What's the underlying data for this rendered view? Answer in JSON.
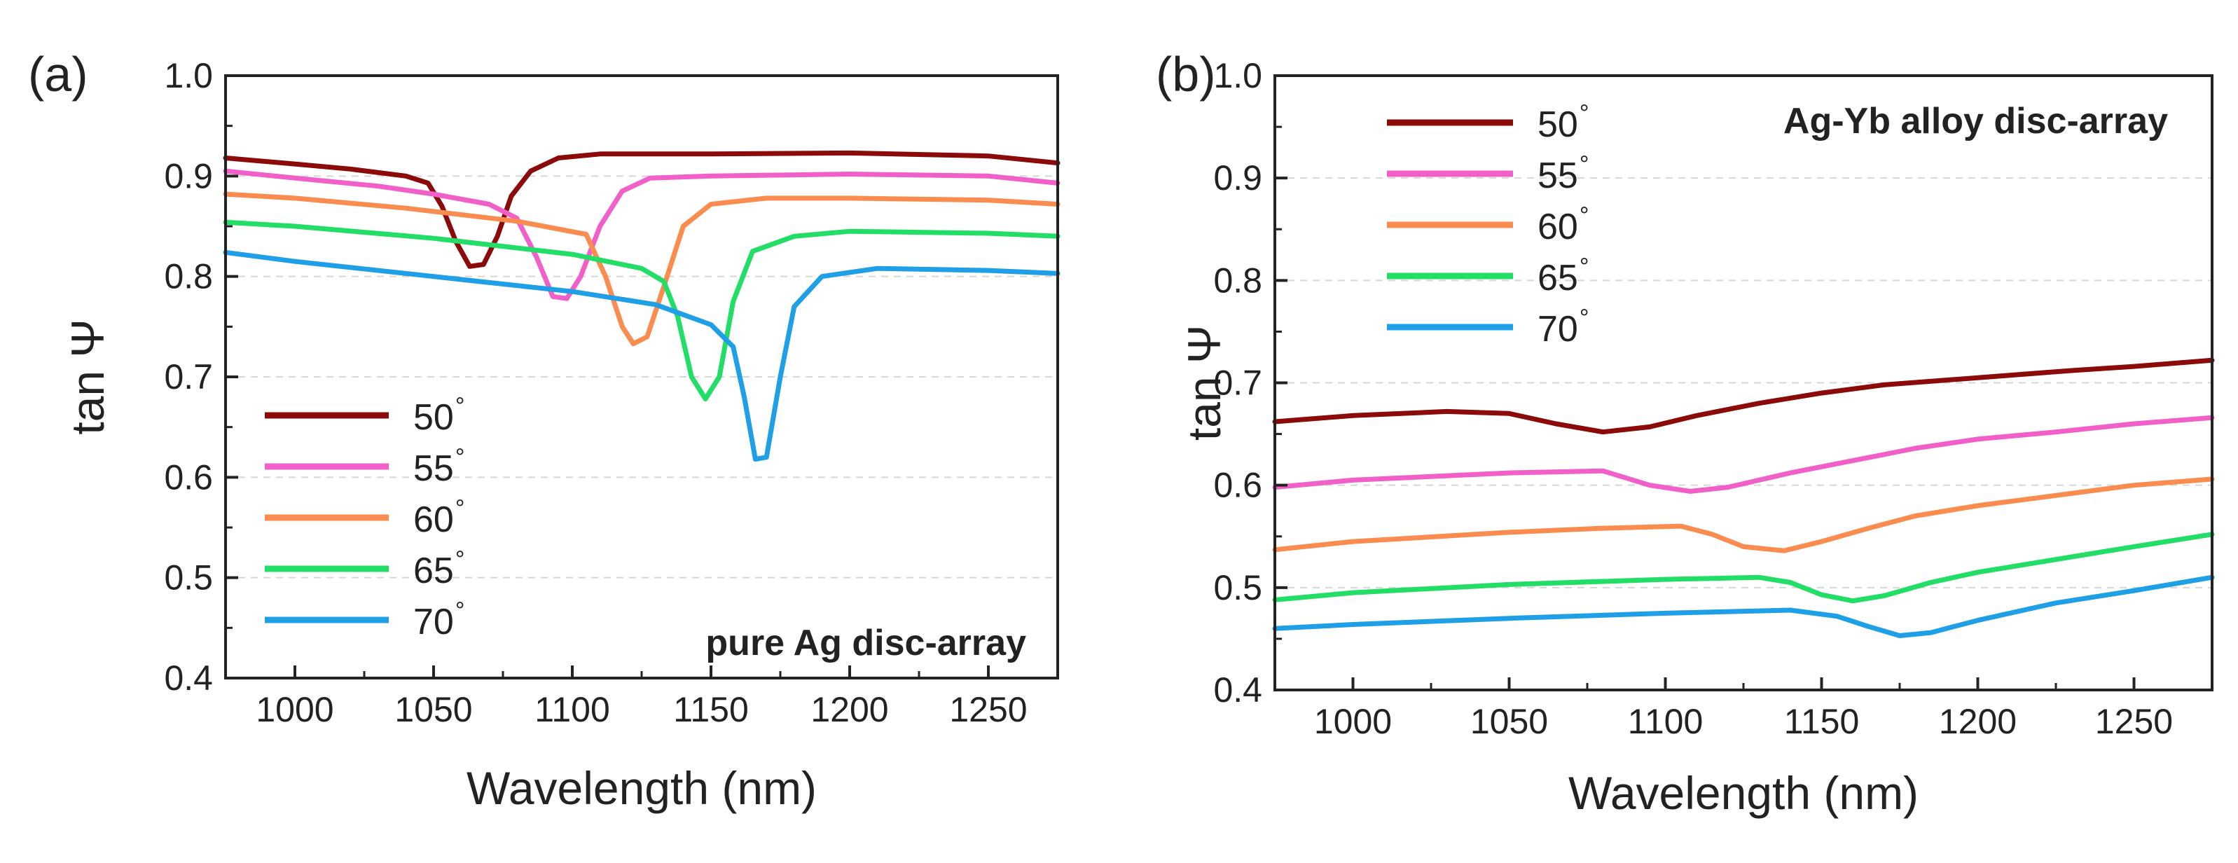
{
  "chart_data": [
    {
      "type": "line",
      "panel_label": "(a)",
      "title": "pure Ag disc-array",
      "xlabel": "Wavelength (nm)",
      "ylabel": "tan Ψ",
      "xlim": [
        975,
        1275
      ],
      "ylim": [
        0.4,
        1.0
      ],
      "xticks": [
        1000,
        1050,
        1100,
        1150,
        1200,
        1250
      ],
      "yticks": [
        0.4,
        0.5,
        0.6,
        0.7,
        0.8,
        0.9,
        1.0
      ],
      "ytick_labels": [
        "0.4",
        "0.5",
        "0.6",
        "0.7",
        "0.8",
        "0.9",
        "1.0"
      ],
      "grid": "horizontal dashed",
      "legend_position": "bottom-left",
      "series": [
        {
          "name": "50",
          "color": "#8b0a0a",
          "points": [
            [
              975,
              0.918
            ],
            [
              1000,
              0.912
            ],
            [
              1020,
              0.907
            ],
            [
              1040,
              0.9
            ],
            [
              1048,
              0.893
            ],
            [
              1053,
              0.87
            ],
            [
              1058,
              0.835
            ],
            [
              1063,
              0.81
            ],
            [
              1068,
              0.812
            ],
            [
              1073,
              0.84
            ],
            [
              1078,
              0.88
            ],
            [
              1085,
              0.905
            ],
            [
              1095,
              0.918
            ],
            [
              1110,
              0.922
            ],
            [
              1150,
              0.922
            ],
            [
              1200,
              0.923
            ],
            [
              1250,
              0.92
            ],
            [
              1275,
              0.913
            ]
          ]
        },
        {
          "name": "55",
          "color": "#f060c8",
          "points": [
            [
              975,
              0.905
            ],
            [
              1000,
              0.898
            ],
            [
              1030,
              0.89
            ],
            [
              1050,
              0.882
            ],
            [
              1070,
              0.872
            ],
            [
              1080,
              0.858
            ],
            [
              1087,
              0.82
            ],
            [
              1093,
              0.78
            ],
            [
              1098,
              0.778
            ],
            [
              1103,
              0.8
            ],
            [
              1110,
              0.85
            ],
            [
              1118,
              0.885
            ],
            [
              1128,
              0.898
            ],
            [
              1150,
              0.9
            ],
            [
              1200,
              0.902
            ],
            [
              1250,
              0.9
            ],
            [
              1275,
              0.893
            ]
          ]
        },
        {
          "name": "60",
          "color": "#f98c4e",
          "points": [
            [
              975,
              0.882
            ],
            [
              1000,
              0.878
            ],
            [
              1040,
              0.868
            ],
            [
              1080,
              0.855
            ],
            [
              1105,
              0.842
            ],
            [
              1112,
              0.8
            ],
            [
              1118,
              0.75
            ],
            [
              1122,
              0.733
            ],
            [
              1127,
              0.74
            ],
            [
              1133,
              0.79
            ],
            [
              1140,
              0.85
            ],
            [
              1150,
              0.872
            ],
            [
              1170,
              0.878
            ],
            [
              1200,
              0.878
            ],
            [
              1250,
              0.876
            ],
            [
              1275,
              0.872
            ]
          ]
        },
        {
          "name": "65",
          "color": "#22dd66",
          "points": [
            [
              975,
              0.854
            ],
            [
              1000,
              0.85
            ],
            [
              1050,
              0.838
            ],
            [
              1100,
              0.822
            ],
            [
              1125,
              0.808
            ],
            [
              1133,
              0.795
            ],
            [
              1138,
              0.76
            ],
            [
              1143,
              0.7
            ],
            [
              1148,
              0.678
            ],
            [
              1153,
              0.7
            ],
            [
              1158,
              0.775
            ],
            [
              1165,
              0.825
            ],
            [
              1180,
              0.84
            ],
            [
              1200,
              0.845
            ],
            [
              1250,
              0.843
            ],
            [
              1275,
              0.84
            ]
          ]
        },
        {
          "name": "70",
          "color": "#1e9fe6",
          "points": [
            [
              975,
              0.824
            ],
            [
              1000,
              0.815
            ],
            [
              1050,
              0.8
            ],
            [
              1100,
              0.785
            ],
            [
              1130,
              0.772
            ],
            [
              1150,
              0.752
            ],
            [
              1158,
              0.73
            ],
            [
              1162,
              0.68
            ],
            [
              1166,
              0.618
            ],
            [
              1170,
              0.62
            ],
            [
              1175,
              0.7
            ],
            [
              1180,
              0.77
            ],
            [
              1190,
              0.8
            ],
            [
              1210,
              0.808
            ],
            [
              1250,
              0.806
            ],
            [
              1275,
              0.803
            ]
          ]
        }
      ]
    },
    {
      "type": "line",
      "panel_label": "(b)",
      "title": "Ag-Yb alloy disc-array",
      "xlabel": "Wavelength (nm)",
      "ylabel": "tan Ψ",
      "xlim": [
        975,
        1275
      ],
      "ylim": [
        0.4,
        1.0
      ],
      "xticks": [
        1000,
        1050,
        1100,
        1150,
        1200,
        1250
      ],
      "yticks": [
        0.4,
        0.5,
        0.6,
        0.7,
        0.8,
        0.9,
        1.0
      ],
      "ytick_labels": [
        "0.4",
        "0.5",
        "0.6",
        "0.7",
        "0.8",
        "0.9",
        "1.0"
      ],
      "grid": "horizontal dashed",
      "legend_position": "top-left",
      "series": [
        {
          "name": "50",
          "color": "#8b0a0a",
          "points": [
            [
              975,
              0.662
            ],
            [
              1000,
              0.668
            ],
            [
              1030,
              0.672
            ],
            [
              1050,
              0.67
            ],
            [
              1065,
              0.66
            ],
            [
              1080,
              0.652
            ],
            [
              1095,
              0.657
            ],
            [
              1110,
              0.668
            ],
            [
              1130,
              0.68
            ],
            [
              1150,
              0.69
            ],
            [
              1170,
              0.698
            ],
            [
              1200,
              0.705
            ],
            [
              1230,
              0.712
            ],
            [
              1250,
              0.716
            ],
            [
              1275,
              0.722
            ]
          ]
        },
        {
          "name": "55",
          "color": "#f060c8",
          "points": [
            [
              975,
              0.598
            ],
            [
              1000,
              0.605
            ],
            [
              1050,
              0.612
            ],
            [
              1080,
              0.614
            ],
            [
              1095,
              0.6
            ],
            [
              1108,
              0.594
            ],
            [
              1120,
              0.598
            ],
            [
              1140,
              0.612
            ],
            [
              1160,
              0.624
            ],
            [
              1180,
              0.636
            ],
            [
              1200,
              0.645
            ],
            [
              1225,
              0.652
            ],
            [
              1250,
              0.66
            ],
            [
              1275,
              0.666
            ]
          ]
        },
        {
          "name": "60",
          "color": "#f98c4e",
          "points": [
            [
              975,
              0.537
            ],
            [
              1000,
              0.545
            ],
            [
              1050,
              0.554
            ],
            [
              1080,
              0.558
            ],
            [
              1105,
              0.56
            ],
            [
              1115,
              0.552
            ],
            [
              1125,
              0.54
            ],
            [
              1138,
              0.536
            ],
            [
              1150,
              0.545
            ],
            [
              1165,
              0.558
            ],
            [
              1180,
              0.57
            ],
            [
              1200,
              0.58
            ],
            [
              1230,
              0.592
            ],
            [
              1250,
              0.6
            ],
            [
              1275,
              0.606
            ]
          ]
        },
        {
          "name": "65",
          "color": "#22dd66",
          "points": [
            [
              975,
              0.488
            ],
            [
              1000,
              0.495
            ],
            [
              1050,
              0.503
            ],
            [
              1100,
              0.508
            ],
            [
              1130,
              0.51
            ],
            [
              1140,
              0.505
            ],
            [
              1150,
              0.493
            ],
            [
              1160,
              0.487
            ],
            [
              1170,
              0.492
            ],
            [
              1185,
              0.505
            ],
            [
              1200,
              0.515
            ],
            [
              1230,
              0.53
            ],
            [
              1250,
              0.54
            ],
            [
              1275,
              0.552
            ]
          ]
        },
        {
          "name": "70",
          "color": "#1e9fe6",
          "points": [
            [
              975,
              0.46
            ],
            [
              1000,
              0.464
            ],
            [
              1050,
              0.47
            ],
            [
              1100,
              0.475
            ],
            [
              1140,
              0.478
            ],
            [
              1155,
              0.472
            ],
            [
              1165,
              0.462
            ],
            [
              1175,
              0.453
            ],
            [
              1185,
              0.456
            ],
            [
              1200,
              0.468
            ],
            [
              1225,
              0.485
            ],
            [
              1250,
              0.497
            ],
            [
              1275,
              0.51
            ]
          ]
        }
      ]
    }
  ]
}
